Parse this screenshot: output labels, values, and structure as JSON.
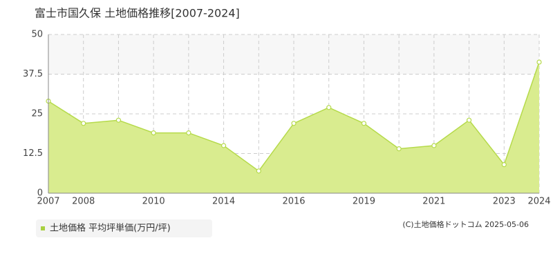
{
  "chart_data": {
    "type": "area",
    "title": "富士市国久保 土地価格推移[2007-2024]",
    "categories": [
      "2007",
      "2008",
      null,
      "2010",
      null,
      "2014",
      null,
      "2016",
      null,
      "2019",
      null,
      "2021",
      null,
      "2023",
      "2024"
    ],
    "series": [
      {
        "name": "土地価格 平均坪単価(万円/坪)",
        "color": "#b5da4a",
        "values": [
          29,
          22,
          23,
          19,
          19,
          15,
          7,
          22,
          27,
          22,
          14,
          15,
          23,
          9,
          41.3
        ]
      }
    ],
    "ylim": [
      0,
      50
    ],
    "yticks": [
      0,
      12.5,
      25,
      37.5,
      50
    ],
    "grid": true,
    "copyright": "(C)土地価格ドットコム 2025-05-06"
  }
}
